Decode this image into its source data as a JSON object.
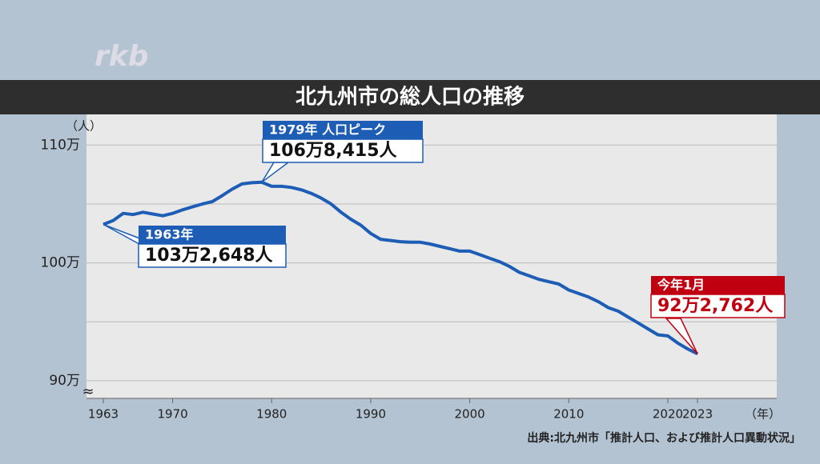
{
  "logo": "rkb",
  "chart_data": {
    "type": "line",
    "title": "北九州市の総人口の推移",
    "y_unit": "（人）",
    "x_unit": "（年）",
    "break_mark": "≈",
    "x": [
      1963,
      1964,
      1965,
      1966,
      1967,
      1968,
      1969,
      1970,
      1971,
      1972,
      1973,
      1974,
      1975,
      1976,
      1977,
      1978,
      1979,
      1980,
      1981,
      1982,
      1983,
      1984,
      1985,
      1986,
      1987,
      1988,
      1989,
      1990,
      1991,
      1992,
      1993,
      1994,
      1995,
      1996,
      1997,
      1998,
      1999,
      2000,
      2001,
      2002,
      2003,
      2004,
      2005,
      2006,
      2007,
      2008,
      2009,
      2010,
      2011,
      2012,
      2013,
      2014,
      2015,
      2016,
      2017,
      2018,
      2019,
      2020,
      2021,
      2022,
      2023
    ],
    "values": [
      1032648,
      1036000,
      1042000,
      1041000,
      1043000,
      1041500,
      1040000,
      1042000,
      1045000,
      1047500,
      1050000,
      1052000,
      1057000,
      1062500,
      1067000,
      1068000,
      1068415,
      1065000,
      1065000,
      1064000,
      1062000,
      1059000,
      1055000,
      1050000,
      1043000,
      1037000,
      1032000,
      1025000,
      1020000,
      1019000,
      1018000,
      1017500,
      1017500,
      1016000,
      1014000,
      1012000,
      1010000,
      1010000,
      1007000,
      1004000,
      1001000,
      997000,
      992000,
      989000,
      986000,
      984000,
      982000,
      977000,
      974000,
      971000,
      967000,
      962000,
      959000,
      954000,
      949000,
      944000,
      939000,
      938000,
      932000,
      927000,
      922762
    ],
    "color": "#1d5db5",
    "xlim": [
      1961.3,
      2031
    ],
    "xticks": [
      1963,
      1970,
      1980,
      1990,
      2000,
      2010,
      2020,
      2023
    ],
    "ylim": [
      885000,
      1126000
    ],
    "yticks": [
      {
        "value": 900000,
        "label": "90万"
      },
      {
        "value": 950000,
        "label": null
      },
      {
        "value": 1000000,
        "label": "100万"
      },
      {
        "value": 1050000,
        "label": null
      },
      {
        "value": 1100000,
        "label": "110万"
      }
    ],
    "grid": true,
    "annotations": [
      {
        "label": "1963年",
        "text": "103万2,648人",
        "color": "#1d5db5"
      },
      {
        "label": "1979年 人口ピーク",
        "text": "106万8,415人",
        "color": "#1d5db5"
      },
      {
        "label": "今年1月",
        "text": "92万2,762人",
        "color": "#c00010"
      }
    ],
    "source": "出典:北九州市「推計人口、および推計人口異動状況」"
  }
}
